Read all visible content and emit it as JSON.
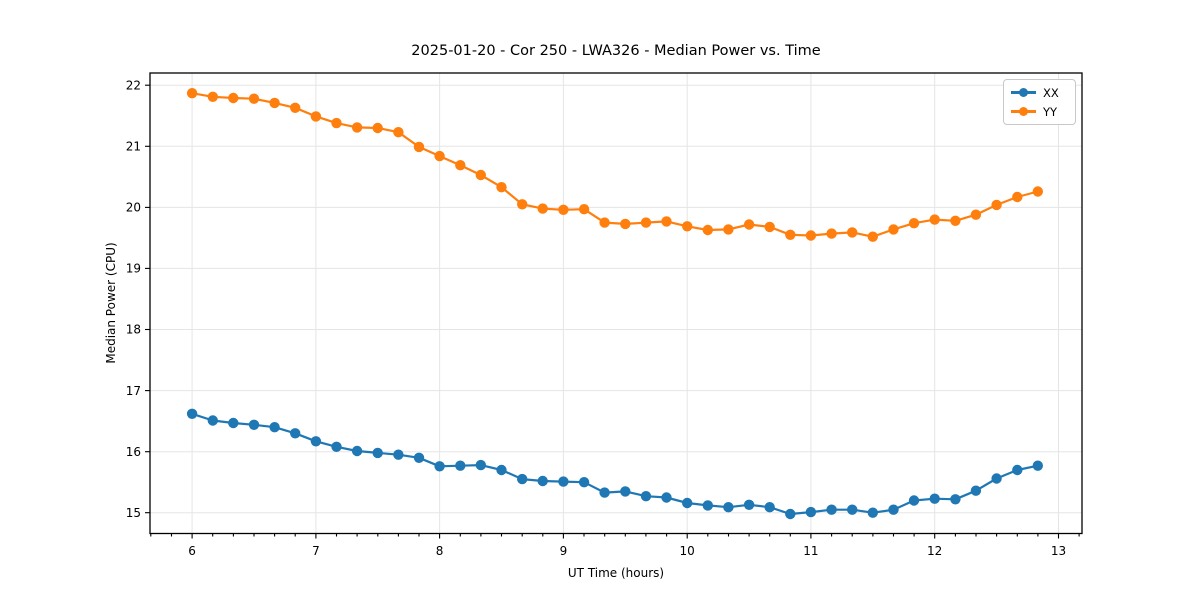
{
  "chart_data": {
    "type": "line",
    "title": "2025-01-20 - Cor 250 - LWA326 - Median Power vs. Time",
    "xlabel": "UT Time (hours)",
    "ylabel": "Median Power (CPU)",
    "xlim": [
      5.66,
      13.19
    ],
    "ylim": [
      14.66,
      22.2
    ],
    "x_ticks": [
      6,
      7,
      8,
      9,
      10,
      11,
      12,
      13
    ],
    "y_ticks": [
      15,
      16,
      17,
      18,
      19,
      20,
      21,
      22
    ],
    "x_minor_step": 0.16667,
    "grid": true,
    "grid_color": "#e5e5e5",
    "legend_position": "upper right",
    "x": [
      6.0,
      6.167,
      6.333,
      6.5,
      6.667,
      6.833,
      7.0,
      7.167,
      7.333,
      7.5,
      7.667,
      7.833,
      8.0,
      8.167,
      8.333,
      8.5,
      8.667,
      8.833,
      9.0,
      9.167,
      9.333,
      9.5,
      9.667,
      9.833,
      10.0,
      10.167,
      10.333,
      10.5,
      10.667,
      10.833,
      11.0,
      11.167,
      11.333,
      11.5,
      11.667,
      11.833,
      12.0,
      12.167,
      12.333,
      12.5,
      12.667,
      12.833
    ],
    "series": [
      {
        "name": "XX",
        "color": "#1f77b4",
        "values": [
          16.62,
          16.51,
          16.47,
          16.44,
          16.4,
          16.3,
          16.17,
          16.08,
          16.01,
          15.98,
          15.95,
          15.9,
          15.76,
          15.77,
          15.78,
          15.7,
          15.55,
          15.52,
          15.51,
          15.5,
          15.33,
          15.35,
          15.27,
          15.25,
          15.16,
          15.12,
          15.09,
          15.13,
          15.09,
          14.98,
          15.01,
          15.05,
          15.05,
          15.0,
          15.05,
          15.2,
          15.23,
          15.22,
          15.36,
          15.56,
          15.7,
          15.77
        ]
      },
      {
        "name": "YY",
        "color": "#ff7f0e",
        "values": [
          21.87,
          21.81,
          21.79,
          21.78,
          21.71,
          21.63,
          21.49,
          21.38,
          21.31,
          21.3,
          21.23,
          20.99,
          20.84,
          20.69,
          20.53,
          20.33,
          20.05,
          19.98,
          19.96,
          19.97,
          19.75,
          19.73,
          19.75,
          19.77,
          19.69,
          19.63,
          19.64,
          19.72,
          19.68,
          19.55,
          19.54,
          19.57,
          19.59,
          19.52,
          19.64,
          19.74,
          19.8,
          19.78,
          19.88,
          20.04,
          20.17,
          20.26
        ]
      }
    ]
  }
}
